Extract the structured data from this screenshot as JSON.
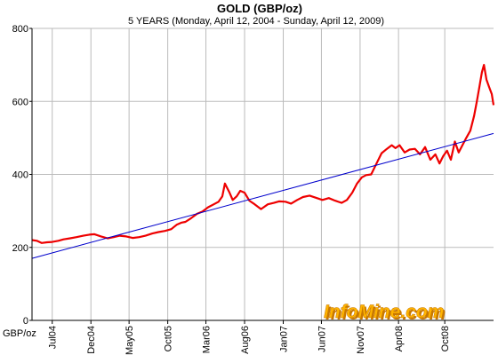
{
  "chart_data": {
    "type": "line",
    "title": "GOLD (GBP/oz)",
    "subtitle": "5 YEARS (Monday, April 12, 2004  -  Sunday, April 12, 2009)",
    "ylabel": "GBP/oz",
    "xlabel": "",
    "ylim": [
      0,
      800
    ],
    "y_ticks": [
      0,
      200,
      400,
      600,
      800
    ],
    "xlim": [
      "2004-04-12",
      "2009-04-12"
    ],
    "x_ticks": [
      {
        "label": "Jul04",
        "date": "2004-07-01"
      },
      {
        "label": "Dec04",
        "date": "2004-12-01"
      },
      {
        "label": "May05",
        "date": "2005-05-01"
      },
      {
        "label": "Oct05",
        "date": "2005-10-01"
      },
      {
        "label": "Mar06",
        "date": "2006-03-01"
      },
      {
        "label": "Aug06",
        "date": "2006-08-01"
      },
      {
        "label": "Jan07",
        "date": "2007-01-01"
      },
      {
        "label": "Jun07",
        "date": "2007-06-01"
      },
      {
        "label": "Nov07",
        "date": "2007-11-01"
      },
      {
        "label": "Apr08",
        "date": "2008-04-01"
      },
      {
        "label": "Oct08",
        "date": "2008-10-01"
      }
    ],
    "grid": true,
    "legend": "none",
    "series": [
      {
        "type": "line",
        "color": "#ee0000",
        "x": [
          "2004-04-12",
          "2004-05-01",
          "2004-05-20",
          "2004-06-10",
          "2004-07-01",
          "2004-07-25",
          "2004-08-15",
          "2004-09-10",
          "2004-10-05",
          "2004-11-01",
          "2004-11-25",
          "2004-12-15",
          "2005-01-10",
          "2005-02-05",
          "2005-03-01",
          "2005-03-25",
          "2005-04-20",
          "2005-05-15",
          "2005-06-10",
          "2005-07-05",
          "2005-08-01",
          "2005-08-25",
          "2005-09-20",
          "2005-10-15",
          "2005-11-05",
          "2005-11-25",
          "2005-12-10",
          "2006-01-01",
          "2006-01-25",
          "2006-02-15",
          "2006-03-10",
          "2006-04-01",
          "2006-04-20",
          "2006-05-05",
          "2006-05-15",
          "2006-06-01",
          "2006-06-15",
          "2006-07-01",
          "2006-07-15",
          "2006-08-01",
          "2006-08-20",
          "2006-09-10",
          "2006-10-05",
          "2006-11-01",
          "2006-11-25",
          "2006-12-15",
          "2007-01-10",
          "2007-02-01",
          "2007-02-25",
          "2007-03-20",
          "2007-04-15",
          "2007-05-10",
          "2007-06-05",
          "2007-06-30",
          "2007-07-25",
          "2007-08-20",
          "2007-09-10",
          "2007-10-01",
          "2007-10-20",
          "2007-11-08",
          "2007-11-25",
          "2007-12-15",
          "2008-01-05",
          "2008-01-25",
          "2008-02-15",
          "2008-03-05",
          "2008-03-20",
          "2008-04-05",
          "2008-04-25",
          "2008-05-15",
          "2008-06-05",
          "2008-06-25",
          "2008-07-15",
          "2008-08-05",
          "2008-08-25",
          "2008-09-10",
          "2008-09-25",
          "2008-10-10",
          "2008-10-25",
          "2008-11-10",
          "2008-11-25",
          "2008-12-10",
          "2008-12-25",
          "2009-01-10",
          "2009-01-25",
          "2009-02-05",
          "2009-02-15",
          "2009-02-25",
          "2009-03-05",
          "2009-03-15",
          "2009-03-25",
          "2009-04-05",
          "2009-04-12"
        ],
        "values": [
          220,
          218,
          212,
          214,
          215,
          218,
          222,
          225,
          228,
          232,
          235,
          236,
          230,
          225,
          228,
          232,
          230,
          226,
          228,
          232,
          238,
          242,
          245,
          250,
          262,
          268,
          270,
          280,
          292,
          298,
          310,
          318,
          325,
          340,
          375,
          352,
          330,
          340,
          355,
          350,
          328,
          318,
          305,
          318,
          322,
          326,
          325,
          320,
          330,
          338,
          342,
          336,
          330,
          335,
          328,
          322,
          330,
          350,
          375,
          392,
          398,
          400,
          430,
          458,
          470,
          480,
          472,
          480,
          460,
          468,
          470,
          455,
          475,
          440,
          455,
          430,
          450,
          465,
          440,
          490,
          460,
          480,
          500,
          520,
          560,
          600,
          640,
          680,
          700,
          660,
          640,
          620,
          590
        ]
      },
      {
        "type": "trend",
        "color": "#0000cc",
        "x": [
          "2004-04-12",
          "2009-04-12"
        ],
        "values": [
          170,
          512
        ]
      }
    ]
  },
  "watermark": {
    "text": "InfoMine.com",
    "fill_color": "#ffb400",
    "shadow_color": "#c87800"
  },
  "colors": {
    "background": "#ffffff",
    "plot_background": "#ffffff",
    "grid": "#bbbbbb",
    "axis": "#000000"
  }
}
